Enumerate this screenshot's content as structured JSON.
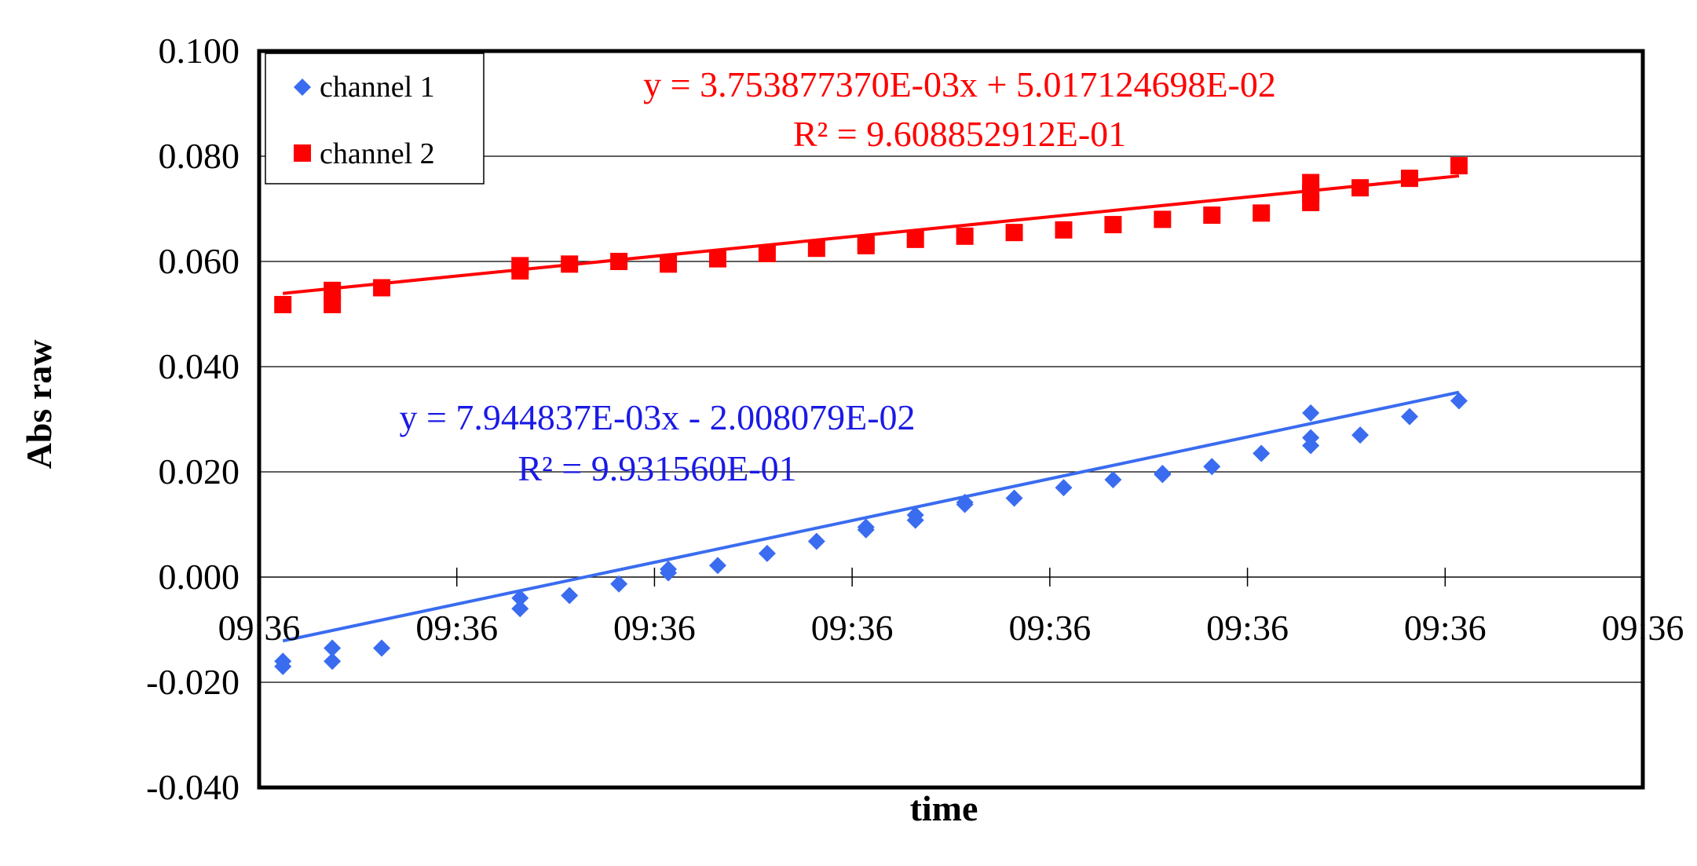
{
  "chart_data": {
    "type": "scatter",
    "title": "",
    "xlabel": "time",
    "ylabel": "Abs raw",
    "ylim": [
      -0.04,
      0.1
    ],
    "ytick_labels": [
      "0.100",
      "0.080",
      "0.060",
      "0.040",
      "0.020",
      "0.000",
      "-0.020",
      "-0.040"
    ],
    "xlim": [
      0,
      7
    ],
    "xtick_labels": [
      "09:36",
      "09:36",
      "09:36",
      "09:36",
      "09:36",
      "09:36",
      "09:36",
      "09:36"
    ],
    "grid": "horizontal",
    "legend_position": "top-left",
    "series": [
      {
        "name": "channel 1",
        "marker": "diamond",
        "color": "#3a6cf0",
        "trendline": {
          "slope": 0.007944837,
          "intercept": -0.02008079
        },
        "equation": "y = 7.944837E-03x - 2.008079E-02",
        "r2": "R² = 9.931560E-01",
        "equation_color": "#1a1ae6",
        "points": [
          [
            0.12,
            -0.017
          ],
          [
            0.12,
            -0.016
          ],
          [
            0.37,
            -0.0135
          ],
          [
            0.37,
            -0.016
          ],
          [
            0.62,
            -0.0135
          ],
          [
            1.32,
            -0.006
          ],
          [
            1.32,
            -0.004
          ],
          [
            1.57,
            -0.0035
          ],
          [
            1.82,
            -0.0013
          ],
          [
            2.07,
            0.0008
          ],
          [
            2.07,
            0.0015
          ],
          [
            2.32,
            0.0022
          ],
          [
            2.57,
            0.0045
          ],
          [
            2.82,
            0.0068
          ],
          [
            3.07,
            0.009
          ],
          [
            3.07,
            0.0095
          ],
          [
            3.32,
            0.0108
          ],
          [
            3.32,
            0.0118
          ],
          [
            3.57,
            0.0138
          ],
          [
            3.57,
            0.0142
          ],
          [
            3.82,
            0.015
          ],
          [
            4.07,
            0.017
          ],
          [
            4.32,
            0.0185
          ],
          [
            4.57,
            0.0195
          ],
          [
            4.57,
            0.0197
          ],
          [
            4.82,
            0.021
          ],
          [
            5.07,
            0.0235
          ],
          [
            5.32,
            0.025
          ],
          [
            5.32,
            0.0265
          ],
          [
            5.32,
            0.0312
          ],
          [
            5.57,
            0.027
          ],
          [
            5.82,
            0.0305
          ],
          [
            6.07,
            0.0335
          ]
        ]
      },
      {
        "name": "channel 2",
        "marker": "square",
        "color": "#ff0000",
        "trendline": {
          "slope": 0.00375387737,
          "intercept": 0.05017124698
        },
        "equation": "y = 3.753877370E-03x + 5.017124698E-02",
        "r2": "R² = 9.608852912E-01",
        "equation_color": "#ff0000",
        "points": [
          [
            0.12,
            0.0518
          ],
          [
            0.37,
            0.0518
          ],
          [
            0.37,
            0.0545
          ],
          [
            0.62,
            0.055
          ],
          [
            1.32,
            0.0582
          ],
          [
            1.32,
            0.0592
          ],
          [
            1.57,
            0.0595
          ],
          [
            1.82,
            0.06
          ],
          [
            2.07,
            0.0595
          ],
          [
            2.32,
            0.0605
          ],
          [
            2.57,
            0.0615
          ],
          [
            2.82,
            0.0625
          ],
          [
            3.07,
            0.063
          ],
          [
            3.07,
            0.0635
          ],
          [
            3.32,
            0.0642
          ],
          [
            3.57,
            0.0648
          ],
          [
            3.82,
            0.0655
          ],
          [
            4.07,
            0.066
          ],
          [
            4.32,
            0.067
          ],
          [
            4.57,
            0.068
          ],
          [
            4.82,
            0.0688
          ],
          [
            5.07,
            0.0692
          ],
          [
            5.32,
            0.0712
          ],
          [
            5.32,
            0.073
          ],
          [
            5.32,
            0.075
          ],
          [
            5.57,
            0.074
          ],
          [
            5.82,
            0.0758
          ],
          [
            6.07,
            0.0782
          ]
        ]
      }
    ]
  }
}
